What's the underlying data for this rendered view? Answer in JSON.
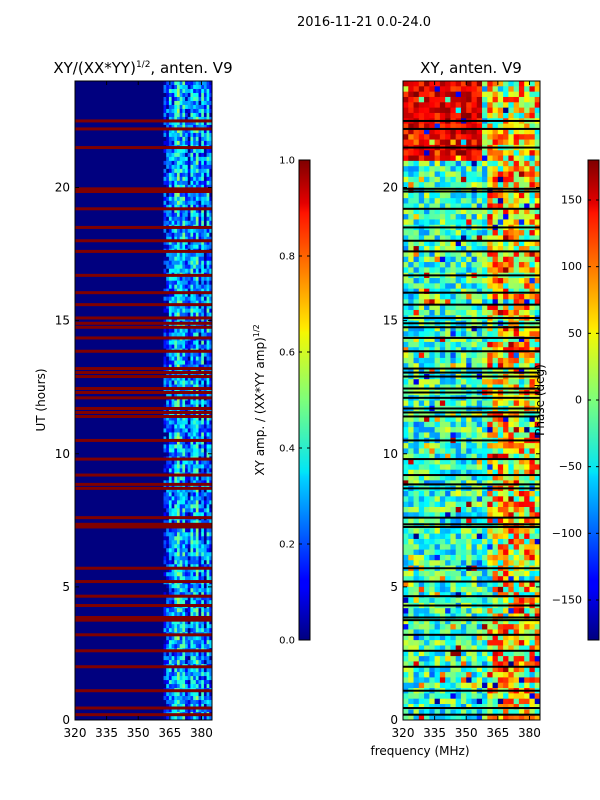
{
  "figure": {
    "suptitle": "2016-11-21 0.0-24.0",
    "xlabel_shared": "frequency (MHz)"
  },
  "chart_data": [
    {
      "type": "heatmap",
      "title_main": "XY/(XX*YY)",
      "title_sup": "1/2",
      "title_tail": ", anten. V9",
      "xlabel": "frequency (MHz)",
      "ylabel": "UT (hours)",
      "xlim": [
        320,
        385
      ],
      "ylim": [
        0,
        24
      ],
      "xticks": [
        "320",
        "335",
        "350",
        "365",
        "380"
      ],
      "xtick_values": [
        320,
        335,
        350,
        365,
        380
      ],
      "yticks": [
        "0",
        "5",
        "10",
        "15",
        "20"
      ],
      "ytick_values": [
        0,
        5,
        10,
        15,
        20
      ],
      "colormap": "jet",
      "background_value": 0.02,
      "flagged_value": 1.0,
      "flagged_ut_hours": [
        0.2,
        0.45,
        1.1,
        2.0,
        2.6,
        3.2,
        3.75,
        3.85,
        4.3,
        4.65,
        5.2,
        5.7,
        7.25,
        7.35,
        7.6,
        8.7,
        8.85,
        9.2,
        9.8,
        10.5,
        11.4,
        11.55,
        11.7,
        12.1,
        12.3,
        12.45,
        12.9,
        13.05,
        13.2,
        13.85,
        14.35,
        14.75,
        14.9,
        15.1,
        15.6,
        16.05,
        16.7,
        17.6,
        18.0,
        18.5,
        19.2,
        19.85,
        19.95,
        21.5,
        22.2,
        22.5
      ],
      "active_band_mhz": [
        362,
        385
      ],
      "colorbar": {
        "label_main": "XY amp. / (XX*YY amp)",
        "label_sup": "1/2",
        "min": 0.0,
        "max": 1.0,
        "ticks": [
          "0.0",
          "0.2",
          "0.4",
          "0.6",
          "0.8",
          "1.0"
        ],
        "tick_values": [
          0.0,
          0.2,
          0.4,
          0.6,
          0.8,
          1.0
        ]
      }
    },
    {
      "type": "heatmap",
      "title": "XY, anten. V9",
      "xlabel": "frequency (MHz)",
      "ylabel": "",
      "xlim": [
        320,
        385
      ],
      "ylim": [
        0,
        24
      ],
      "xticks": [
        "320",
        "335",
        "350",
        "365",
        "380"
      ],
      "xtick_values": [
        320,
        335,
        350,
        365,
        380
      ],
      "yticks": [
        "0",
        "5",
        "10",
        "15",
        "20"
      ],
      "ytick_values": [
        0,
        5,
        10,
        15,
        20
      ],
      "colormap": "jet",
      "flagged_ut_hours": [
        0.2,
        0.45,
        1.1,
        2.0,
        2.6,
        3.2,
        3.75,
        3.85,
        4.3,
        4.65,
        5.2,
        5.7,
        7.25,
        7.35,
        7.6,
        8.7,
        8.85,
        9.2,
        9.8,
        10.5,
        11.4,
        11.55,
        11.7,
        12.1,
        12.3,
        12.45,
        12.9,
        13.05,
        13.2,
        13.85,
        14.35,
        14.75,
        14.9,
        15.1,
        15.6,
        16.05,
        16.7,
        17.6,
        18.0,
        18.5,
        19.2,
        19.85,
        19.95,
        21.5,
        22.2,
        22.5
      ],
      "colorbar": {
        "label": "Phase (deg)",
        "min": -180,
        "max": 180,
        "ticks": [
          "−150",
          "−100",
          "−50",
          "0",
          "50",
          "100",
          "150"
        ],
        "tick_values": [
          -150,
          -100,
          -50,
          0,
          50,
          100,
          150
        ]
      }
    }
  ]
}
